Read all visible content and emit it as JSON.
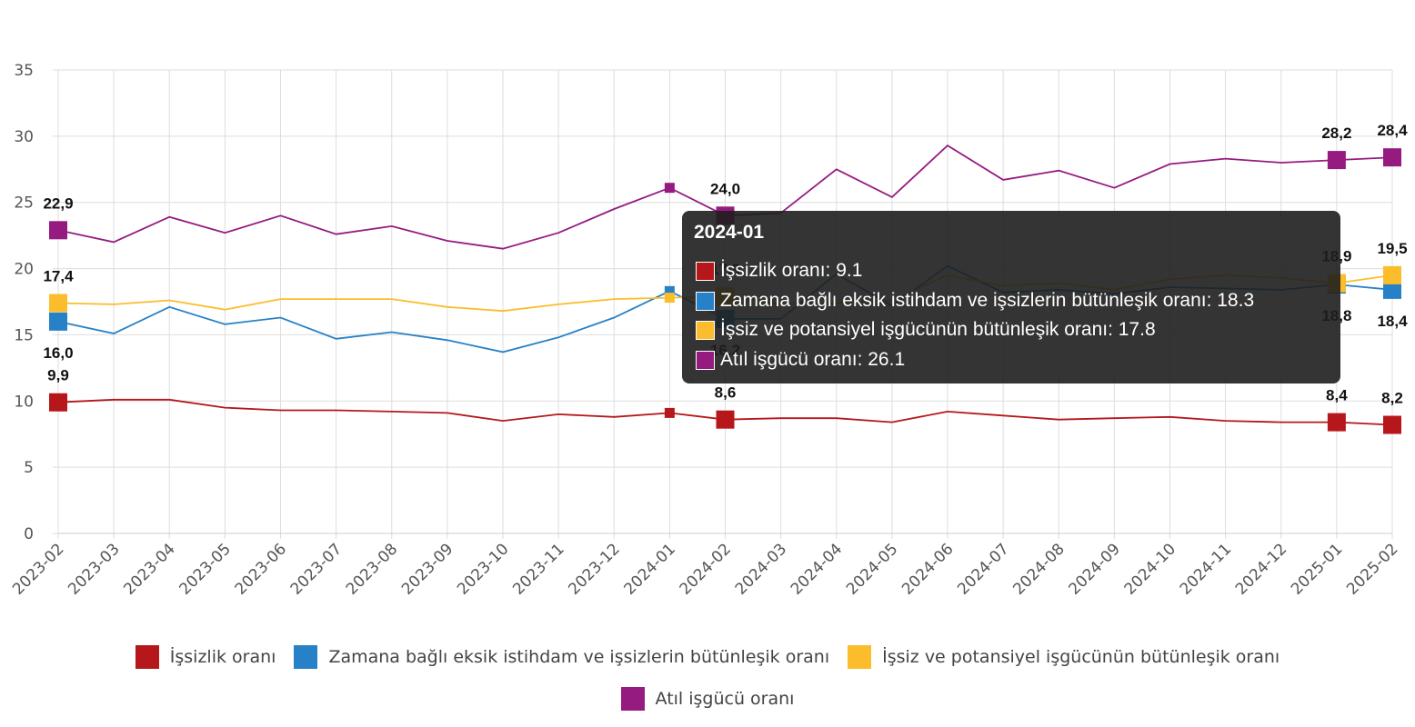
{
  "chart_data": {
    "type": "line",
    "categories": [
      "2023-02",
      "2023-03",
      "2023-04",
      "2023-05",
      "2023-06",
      "2023-07",
      "2023-08",
      "2023-09",
      "2023-10",
      "2023-11",
      "2023-12",
      "2024-01",
      "2024-02",
      "2024-03",
      "2024-04",
      "2024-05",
      "2024-06",
      "2024-07",
      "2024-08",
      "2024-09",
      "2024-10",
      "2024-11",
      "2024-12",
      "2025-01",
      "2025-02"
    ],
    "ylim": [
      0,
      35
    ],
    "yticks": [
      0,
      5,
      10,
      15,
      20,
      25,
      30,
      35
    ],
    "grid": true,
    "legend_position": "bottom",
    "series": [
      {
        "name": "İşsizlik oranı",
        "color": "#b5171b",
        "values": [
          9.9,
          10.1,
          10.1,
          9.5,
          9.3,
          9.3,
          9.2,
          9.1,
          8.5,
          9.0,
          8.8,
          9.1,
          8.6,
          8.7,
          8.7,
          8.4,
          9.2,
          8.9,
          8.6,
          8.7,
          8.8,
          8.5,
          8.4,
          8.4,
          8.2
        ],
        "labels": {
          "0": "9,9",
          "12": "8,6",
          "23": "8,4",
          "24": "8,2"
        },
        "label_pos": {
          "0": "above",
          "12": "above",
          "23": "above",
          "24": "above"
        }
      },
      {
        "name": "Zamana bağlı eksik istihdam ve işsizlerin bütünleşik oranı",
        "color": "#2781c6",
        "values": [
          16.0,
          15.1,
          17.1,
          15.8,
          16.3,
          14.7,
          15.2,
          14.6,
          13.7,
          14.8,
          16.3,
          18.3,
          16.2,
          16.2,
          19.6,
          17.2,
          20.2,
          18.2,
          18.4,
          18.1,
          18.6,
          18.5,
          18.4,
          18.8,
          18.4
        ],
        "labels": {
          "0": "16,0",
          "12": "16,2",
          "23": "18,8",
          "24": "18,4"
        },
        "label_pos": {
          "0": "below",
          "12": "below",
          "23": "below",
          "24": "below"
        }
      },
      {
        "name": "İşsiz ve potansiyel işgücünün bütünleşik oranı",
        "color": "#fbbd2c",
        "values": [
          17.4,
          17.3,
          17.6,
          16.9,
          17.7,
          17.7,
          17.7,
          17.1,
          16.8,
          17.3,
          17.7,
          17.8,
          17.9,
          17.3,
          17.4,
          17.6,
          19.5,
          18.7,
          18.9,
          18.4,
          19.2,
          19.5,
          19.3,
          18.9,
          19.5
        ],
        "labels": {
          "0": "17,4",
          "12": "17,9",
          "23": "18,9",
          "24": "19,5"
        },
        "label_pos": {
          "0": "above",
          "12": "above",
          "23": "above",
          "24": "above"
        }
      },
      {
        "name": "Atıl işgücü oranı",
        "color": "#951b81",
        "values": [
          22.9,
          22.0,
          23.9,
          22.7,
          24.0,
          22.6,
          23.2,
          22.1,
          21.5,
          22.7,
          24.5,
          26.1,
          24.0,
          24.2,
          27.5,
          25.4,
          29.3,
          26.7,
          27.4,
          26.1,
          27.9,
          28.3,
          28.0,
          28.2,
          28.4
        ],
        "labels": {
          "0": "22,9",
          "12": "24,0",
          "23": "28,2",
          "24": "28,4"
        },
        "label_pos": {
          "0": "above",
          "12": "above",
          "23": "above",
          "24": "above"
        }
      }
    ]
  },
  "legend": {
    "items": [
      {
        "label": "İşsizlik oranı",
        "color": "#b5171b"
      },
      {
        "label": "Zamana bağlı eksik istihdam ve işsizlerin bütünleşik oranı",
        "color": "#2781c6"
      },
      {
        "label": "İşsiz ve potansiyel işgücünün bütünleşik oranı",
        "color": "#fbbd2c"
      },
      {
        "label": "Atıl işgücü oranı",
        "color": "#951b81"
      }
    ]
  },
  "tooltip": {
    "title": "2024-01",
    "rows": [
      {
        "text": "İşsizlik oranı: 9.1",
        "color": "#b5171b"
      },
      {
        "text": "Zamana bağlı eksik istihdam ve işsizlerin bütünleşik oranı: 18.3",
        "color": "#2781c6"
      },
      {
        "text": "İşsiz ve potansiyel işgücünün bütünleşik oranı: 17.8",
        "color": "#fbbd2c"
      },
      {
        "text": "Atıl işgücü oranı: 26.1",
        "color": "#951b81"
      }
    ]
  }
}
